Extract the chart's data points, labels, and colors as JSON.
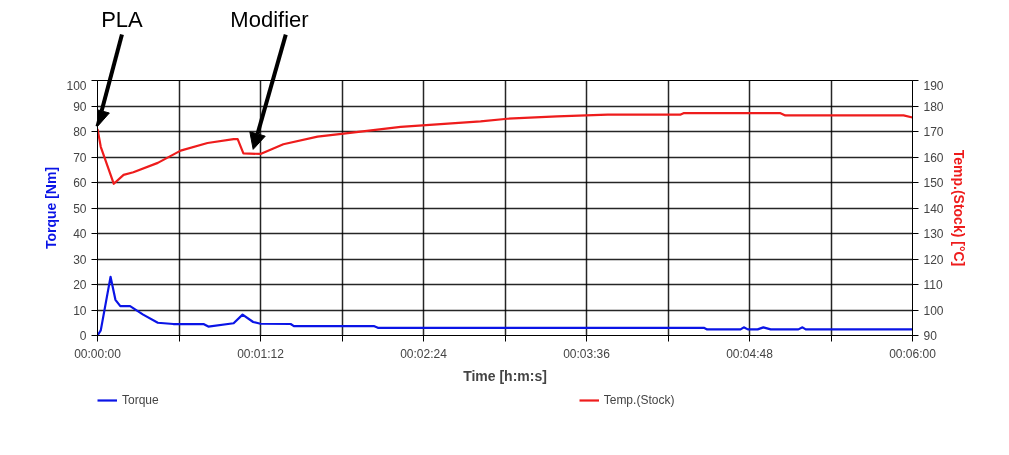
{
  "chart_data": {
    "type": "line",
    "xlabel": "Time [h:m:s]",
    "ylabel": "Torque [Nm]",
    "y2label": "Temp.(Stock) [°C]",
    "xlim": [
      0,
      0.1
    ],
    "ylim": [
      0,
      100
    ],
    "y2lim": [
      90,
      190
    ],
    "xticks": [
      {
        "value": 0,
        "label": "00:00:00"
      },
      {
        "value": 0.01,
        "label": null
      },
      {
        "value": 0.02,
        "label": "00:01:12"
      },
      {
        "value": 0.03,
        "label": null
      },
      {
        "value": 0.04,
        "label": "00:02:24"
      },
      {
        "value": 0.05,
        "label": null
      },
      {
        "value": 0.06,
        "label": "00:03:36"
      },
      {
        "value": 0.07,
        "label": null
      },
      {
        "value": 0.08,
        "label": "00:04:48"
      },
      {
        "value": 0.09,
        "label": null
      },
      {
        "value": 0.1,
        "label": "00:06:00"
      }
    ],
    "yticks": [
      0,
      10,
      20,
      30,
      40,
      50,
      60,
      70,
      80,
      90,
      100
    ],
    "y2ticks": [
      90,
      100,
      110,
      120,
      130,
      140,
      150,
      160,
      170,
      180,
      190
    ],
    "grid": true,
    "legend": "bottom",
    "line_style": "solid",
    "marker": "none",
    "annotations": [
      {
        "text": "PLA",
        "x": 0,
        "y": 81
      },
      {
        "text": "Modifier",
        "x": 0.0191,
        "y": 72
      }
    ],
    "series": [
      {
        "name": "Torque",
        "color": "#0a14e6",
        "x": [
          0,
          0.0004,
          0.0016,
          0.0022,
          0.0028,
          0.004,
          0.0056,
          0.0074,
          0.0093,
          0.013,
          0.0136,
          0.0167,
          0.0178,
          0.0191,
          0.02,
          0.0237,
          0.0241,
          0.0339,
          0.0344,
          0.0744,
          0.0748,
          0.0789,
          0.0793,
          0.0798,
          0.081,
          0.0817,
          0.0826,
          0.086,
          0.0865,
          0.0869,
          0.1
        ],
        "values": [
          0,
          2,
          23,
          14,
          11.5,
          11.5,
          8.2,
          5,
          4.5,
          4.5,
          3.5,
          4.8,
          8.2,
          5.3,
          4.6,
          4.5,
          3.7,
          3.7,
          3,
          3,
          2.4,
          2.4,
          3.2,
          2.4,
          2.4,
          3.2,
          2.4,
          2.4,
          3.2,
          2.4,
          2.4
        ]
      },
      {
        "name": "Temp.(Stock)",
        "color": "#ee1c1c",
        "axis": "y2",
        "x": [
          0,
          0.0004,
          0.002,
          0.0032,
          0.0044,
          0.0074,
          0.0102,
          0.0135,
          0.0167,
          0.0172,
          0.0179,
          0.02,
          0.0228,
          0.027,
          0.0302,
          0.0372,
          0.047,
          0.0503,
          0.0564,
          0.0626,
          0.0715,
          0.0719,
          0.0838,
          0.0844,
          0.0989,
          0.1
        ],
        "values": [
          171,
          164,
          149.5,
          153,
          154,
          157.7,
          162.5,
          165.5,
          167,
          167,
          161.4,
          161.2,
          165,
          168,
          169.2,
          171.8,
          174,
          175,
          175.9,
          176.6,
          176.6,
          177.2,
          177.2,
          176.3,
          176.3,
          175.5
        ]
      }
    ]
  }
}
